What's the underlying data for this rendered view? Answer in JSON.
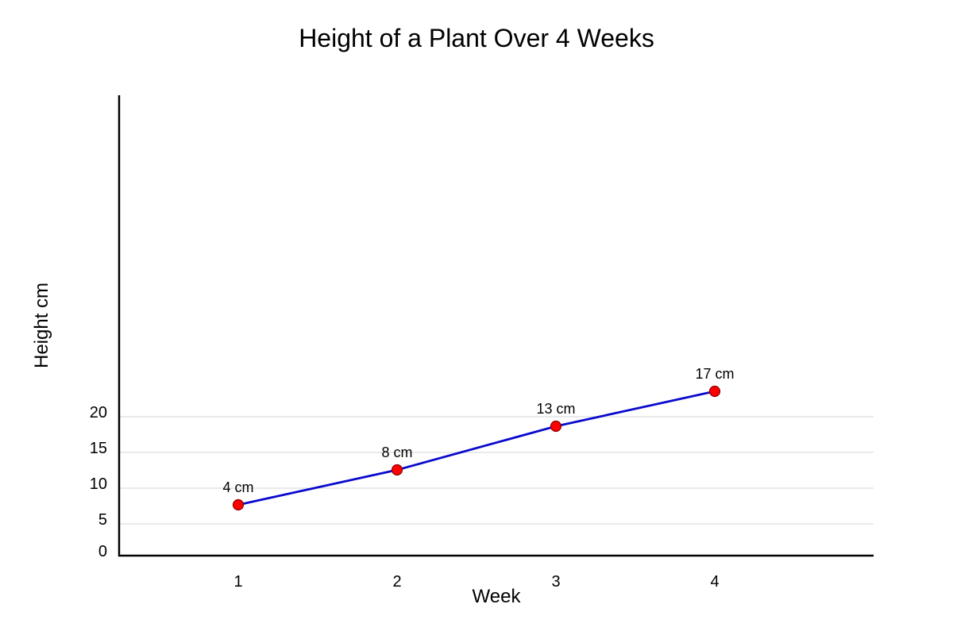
{
  "chart_data": {
    "type": "line",
    "title": "Height of a Plant Over 4 Weeks",
    "xlabel": "Week",
    "ylabel": "Height cm",
    "x": [
      1,
      2,
      3,
      4
    ],
    "x_tick_labels": [
      "1",
      "2",
      "3",
      "4"
    ],
    "y_tick_labels": [
      "0",
      "5",
      "10",
      "15",
      "20"
    ],
    "series": [
      {
        "values": [
          4,
          8,
          13,
          17
        ],
        "data_labels": [
          "4 cm",
          "8 cm",
          "13 cm",
          "17 cm"
        ]
      }
    ],
    "grid": true,
    "colors": {
      "line": "#0a0acd",
      "marker": "#ff0000",
      "marker_stroke": "#8b0000",
      "grid": "#dddddd",
      "axis": "#000000"
    }
  }
}
